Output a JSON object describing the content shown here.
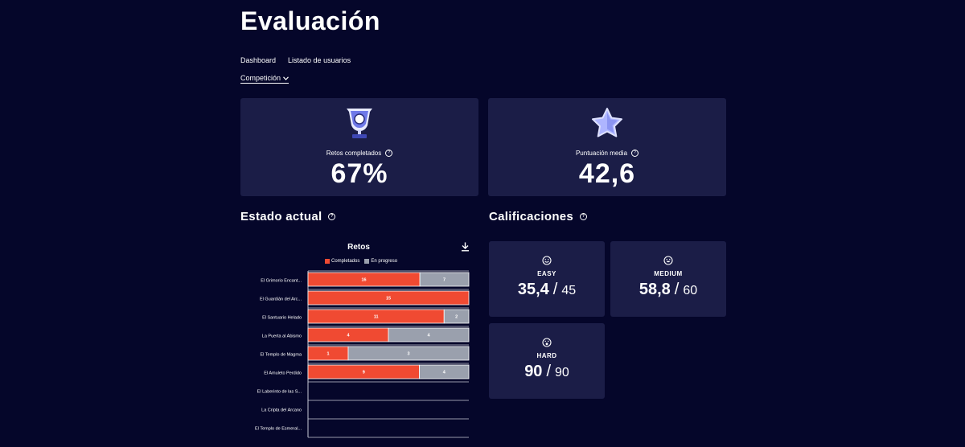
{
  "page": {
    "title": "Evaluación"
  },
  "nav": {
    "items": [
      {
        "label": "Dashboard"
      },
      {
        "label": "Listado de usuarios"
      }
    ]
  },
  "filter": {
    "selected": "Competición"
  },
  "stats": [
    {
      "label": "Retos completados",
      "value": "67%",
      "icon": "trophy-icon"
    },
    {
      "label": "Puntuación media",
      "value": "42,6",
      "icon": "star-icon"
    }
  ],
  "status_section": {
    "title": "Estado actual"
  },
  "grades_section": {
    "title": "Calificaciones"
  },
  "colors": {
    "completed": "#f04a32",
    "in_progress": "#9aa0ad",
    "background": "#05062a",
    "card": "#1b1d47"
  },
  "chart_data": {
    "type": "bar",
    "orientation": "horizontal",
    "stacked": true,
    "title": "Retos",
    "categories": [
      "El Grimorio Encant...",
      "El Guardián del Arc...",
      "El Santuario Helado",
      "La Puerta al Abismo",
      "El Templo de Magma",
      "El Amuleto Perdido",
      "El Laberinto de las S...",
      "La Cripta del Arcano",
      "El Templo de Esmeral..."
    ],
    "series": [
      {
        "name": "Completados",
        "values": [
          16,
          15,
          11,
          4,
          1,
          9,
          0,
          0,
          0
        ]
      },
      {
        "name": "En progreso",
        "values": [
          7,
          0,
          2,
          4,
          3,
          4,
          0,
          0,
          0
        ]
      }
    ],
    "legend_position": "top"
  },
  "grades": [
    {
      "level": "EASY",
      "score": "35,4",
      "max": "45",
      "icon": "smile-icon"
    },
    {
      "level": "MEDIUM",
      "score": "58,8",
      "max": "60",
      "icon": "grin-icon"
    },
    {
      "level": "HARD",
      "score": "90",
      "max": "90",
      "icon": "surprised-icon"
    }
  ]
}
